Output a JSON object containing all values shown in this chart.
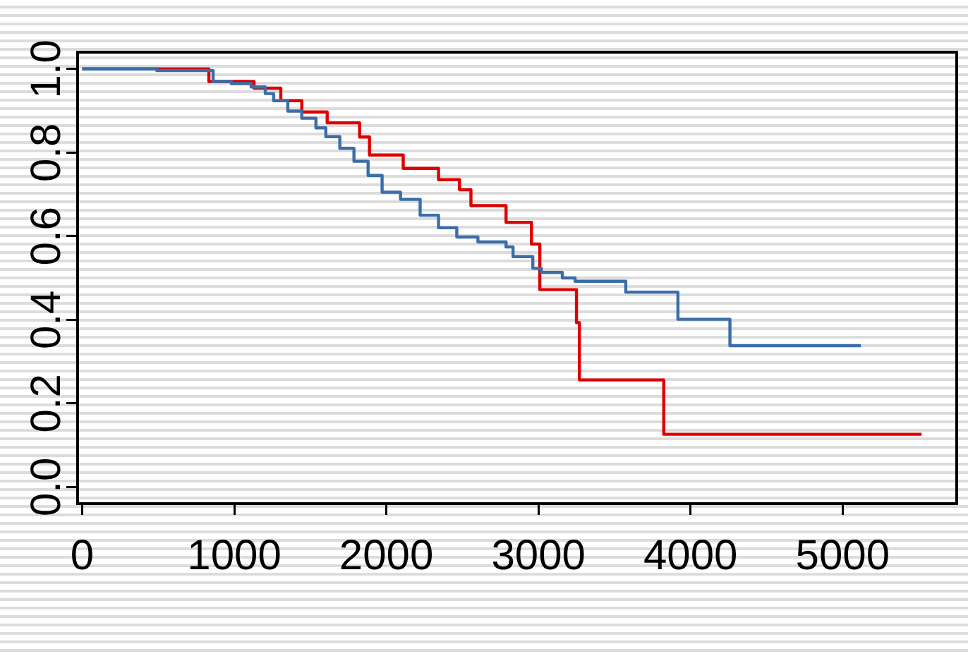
{
  "chart_data": {
    "type": "step",
    "xlim": [
      -30,
      5750
    ],
    "ylim": [
      -0.04,
      1.04
    ],
    "xticks": [
      0,
      1000,
      2000,
      3000,
      4000,
      5000
    ],
    "yticks": [
      {
        "value": 0,
        "label": "0.0"
      },
      {
        "value": 0.2,
        "label": "0.2"
      },
      {
        "value": 0.4,
        "label": "0.4"
      },
      {
        "value": 0.6,
        "label": "0.6"
      },
      {
        "value": 0.8,
        "label": "0.8"
      },
      {
        "value": 1,
        "label": "1.0"
      }
    ],
    "grid": false,
    "legend": false,
    "marker": "none",
    "line_style": "solid",
    "series": [
      {
        "color": "#3b6ea8",
        "x": [
          0,
          491,
          861,
          981,
          1111,
          1204,
          1259,
          1352,
          1444,
          1537,
          1602,
          1694,
          1787,
          1880,
          1972,
          2093,
          2222,
          2343,
          2463,
          2602,
          2787,
          2833,
          2963,
          3019,
          3157,
          3241,
          3574,
          3917,
          4259,
          5120
        ],
        "values": [
          1,
          0.996,
          0.97,
          0.965,
          0.957,
          0.941,
          0.924,
          0.899,
          0.882,
          0.859,
          0.838,
          0.81,
          0.779,
          0.745,
          0.705,
          0.688,
          0.65,
          0.62,
          0.598,
          0.586,
          0.574,
          0.551,
          0.523,
          0.513,
          0.5,
          0.492,
          0.466,
          0.401,
          0.338,
          0.338
        ]
      },
      {
        "color": "#dd0000",
        "x": [
          0,
          833,
          1130,
          1306,
          1444,
          1611,
          1824,
          1889,
          2111,
          2343,
          2481,
          2556,
          2787,
          2954,
          3009,
          3250,
          3269,
          3824,
          5519
        ],
        "values": [
          1,
          0.97,
          0.954,
          0.924,
          0.897,
          0.871,
          0.837,
          0.794,
          0.762,
          0.735,
          0.711,
          0.673,
          0.633,
          0.581,
          0.472,
          0.393,
          0.256,
          0.126,
          0.126
        ]
      }
    ]
  }
}
